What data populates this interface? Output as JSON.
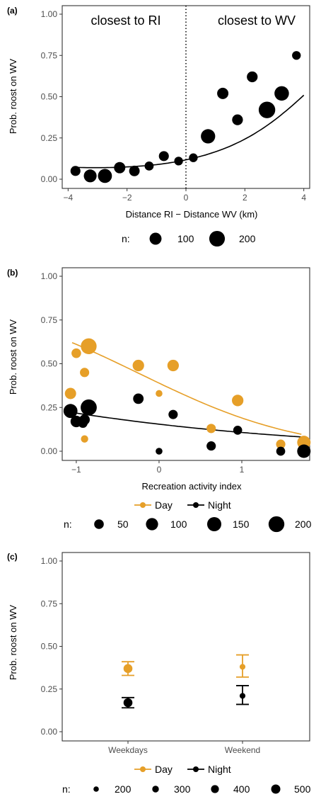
{
  "chart_data": [
    {
      "panel_label": "(a)",
      "type": "scatter",
      "xlabel": "Distance RI − Distance WV (km)",
      "ylabel": "Prob. roost on WV",
      "xlim": [
        -4.2,
        4.2
      ],
      "ylim": [
        0,
        1
      ],
      "x_ticks": [
        -4,
        -2,
        0,
        2,
        4
      ],
      "x_tick_labels": [
        "−4",
        "−2",
        "0",
        "2",
        "4"
      ],
      "y_ticks": [
        0,
        0.25,
        0.5,
        0.75,
        1
      ],
      "y_tick_labels": [
        "0.00",
        "0.25",
        "0.50",
        "0.75",
        "1.00"
      ],
      "grid": false,
      "vline": 0,
      "annotations": [
        "closest to RI",
        "closest to WV"
      ],
      "points": [
        {
          "x": -3.75,
          "y": 0.05,
          "n": 60
        },
        {
          "x": -3.25,
          "y": 0.02,
          "n": 120
        },
        {
          "x": -2.75,
          "y": 0.02,
          "n": 150
        },
        {
          "x": -2.25,
          "y": 0.07,
          "n": 85
        },
        {
          "x": -1.75,
          "y": 0.05,
          "n": 70
        },
        {
          "x": -1.25,
          "y": 0.08,
          "n": 45
        },
        {
          "x": -0.75,
          "y": 0.14,
          "n": 60
        },
        {
          "x": -0.25,
          "y": 0.11,
          "n": 40
        },
        {
          "x": 0.25,
          "y": 0.13,
          "n": 40
        },
        {
          "x": 0.75,
          "y": 0.26,
          "n": 160
        },
        {
          "x": 1.25,
          "y": 0.52,
          "n": 85
        },
        {
          "x": 1.75,
          "y": 0.36,
          "n": 75
        },
        {
          "x": 2.25,
          "y": 0.62,
          "n": 75
        },
        {
          "x": 2.75,
          "y": 0.42,
          "n": 230
        },
        {
          "x": 3.25,
          "y": 0.52,
          "n": 165
        },
        {
          "x": 3.75,
          "y": 0.75,
          "n": 40
        }
      ],
      "fit": {
        "x_range": [
          -3.85,
          4.0
        ],
        "color": "#000000"
      },
      "legend": {
        "title": "n:",
        "items": [
          {
            "label": "100",
            "n": 100
          },
          {
            "label": "200",
            "n": 200
          }
        ],
        "placement": "bottom"
      }
    },
    {
      "panel_label": "(b)",
      "type": "scatter",
      "xlabel": "Recreation activity index",
      "ylabel": "Prob. roost on WV",
      "xlim": [
        -1.17,
        1.82
      ],
      "ylim": [
        0,
        1
      ],
      "x_ticks": [
        -1,
        0,
        1
      ],
      "x_tick_labels": [
        "−1",
        "0",
        "1"
      ],
      "y_ticks": [
        0,
        0.25,
        0.5,
        0.75,
        1
      ],
      "y_tick_labels": [
        "0.00",
        "0.25",
        "0.50",
        "0.75",
        "1.00"
      ],
      "grid": false,
      "series": [
        {
          "name": "Day",
          "color": "#E69F28",
          "points": [
            {
              "x": -1.07,
              "y": 0.33,
              "n": 80
            },
            {
              "x": -1.0,
              "y": 0.56,
              "n": 50
            },
            {
              "x": -0.9,
              "y": 0.45,
              "n": 45
            },
            {
              "x": -0.9,
              "y": 0.07,
              "n": 20
            },
            {
              "x": -0.85,
              "y": 0.6,
              "n": 200
            },
            {
              "x": -0.25,
              "y": 0.49,
              "n": 85
            },
            {
              "x": 0.0,
              "y": 0.33,
              "n": 15
            },
            {
              "x": 0.17,
              "y": 0.49,
              "n": 85
            },
            {
              "x": 0.63,
              "y": 0.13,
              "n": 45
            },
            {
              "x": 0.95,
              "y": 0.29,
              "n": 85
            },
            {
              "x": 1.47,
              "y": 0.04,
              "n": 45
            },
            {
              "x": 1.75,
              "y": 0.05,
              "n": 130
            }
          ],
          "fit": {
            "x_range": [
              -1.05,
              1.72
            ]
          }
        },
        {
          "name": "Night",
          "color": "#000000",
          "points": [
            {
              "x": -1.07,
              "y": 0.23,
              "n": 145
            },
            {
              "x": -1.0,
              "y": 0.17,
              "n": 85
            },
            {
              "x": -0.92,
              "y": 0.16,
              "n": 45
            },
            {
              "x": -0.9,
              "y": 0.18,
              "n": 65
            },
            {
              "x": -0.85,
              "y": 0.25,
              "n": 210
            },
            {
              "x": -0.25,
              "y": 0.3,
              "n": 65
            },
            {
              "x": 0.0,
              "y": 0.0,
              "n": 15
            },
            {
              "x": 0.17,
              "y": 0.21,
              "n": 45
            },
            {
              "x": 0.63,
              "y": 0.03,
              "n": 45
            },
            {
              "x": 0.95,
              "y": 0.12,
              "n": 40
            },
            {
              "x": 1.47,
              "y": 0.0,
              "n": 40
            },
            {
              "x": 1.75,
              "y": 0.0,
              "n": 130
            }
          ],
          "fit": {
            "x_range": [
              -1.05,
              1.72
            ]
          }
        }
      ],
      "legend": {
        "title": "n:",
        "items": [
          {
            "label": "50",
            "n": 50
          },
          {
            "label": "100",
            "n": 100
          },
          {
            "label": "150",
            "n": 150
          },
          {
            "label": "200",
            "n": 200
          }
        ],
        "placement": "bottom"
      }
    },
    {
      "panel_label": "(c)",
      "type": "scatter",
      "xlabel": "",
      "ylabel": "Prob. roost on WV",
      "categories": [
        "Weekdays",
        "Weekend"
      ],
      "ylim": [
        0,
        1
      ],
      "y_ticks": [
        0,
        0.25,
        0.5,
        0.75,
        1
      ],
      "y_tick_labels": [
        "0.00",
        "0.25",
        "0.50",
        "0.75",
        "1.00"
      ],
      "grid": false,
      "series": [
        {
          "name": "Day",
          "color": "#E69F28",
          "points": [
            {
              "category": "Weekdays",
              "y": 0.37,
              "lo": 0.33,
              "hi": 0.41,
              "n": 480
            },
            {
              "category": "Weekend",
              "y": 0.38,
              "lo": 0.32,
              "hi": 0.45,
              "n": 230
            }
          ]
        },
        {
          "name": "Night",
          "color": "#000000",
          "points": [
            {
              "category": "Weekdays",
              "y": 0.17,
              "lo": 0.14,
              "hi": 0.2,
              "n": 480
            },
            {
              "category": "Weekend",
              "y": 0.21,
              "lo": 0.16,
              "hi": 0.27,
              "n": 230
            }
          ]
        }
      ],
      "legend": {
        "title": "n:",
        "items": [
          {
            "label": "200",
            "n": 200
          },
          {
            "label": "300",
            "n": 300
          },
          {
            "label": "400",
            "n": 400
          },
          {
            "label": "500",
            "n": 500
          }
        ],
        "placement": "bottom"
      }
    }
  ]
}
